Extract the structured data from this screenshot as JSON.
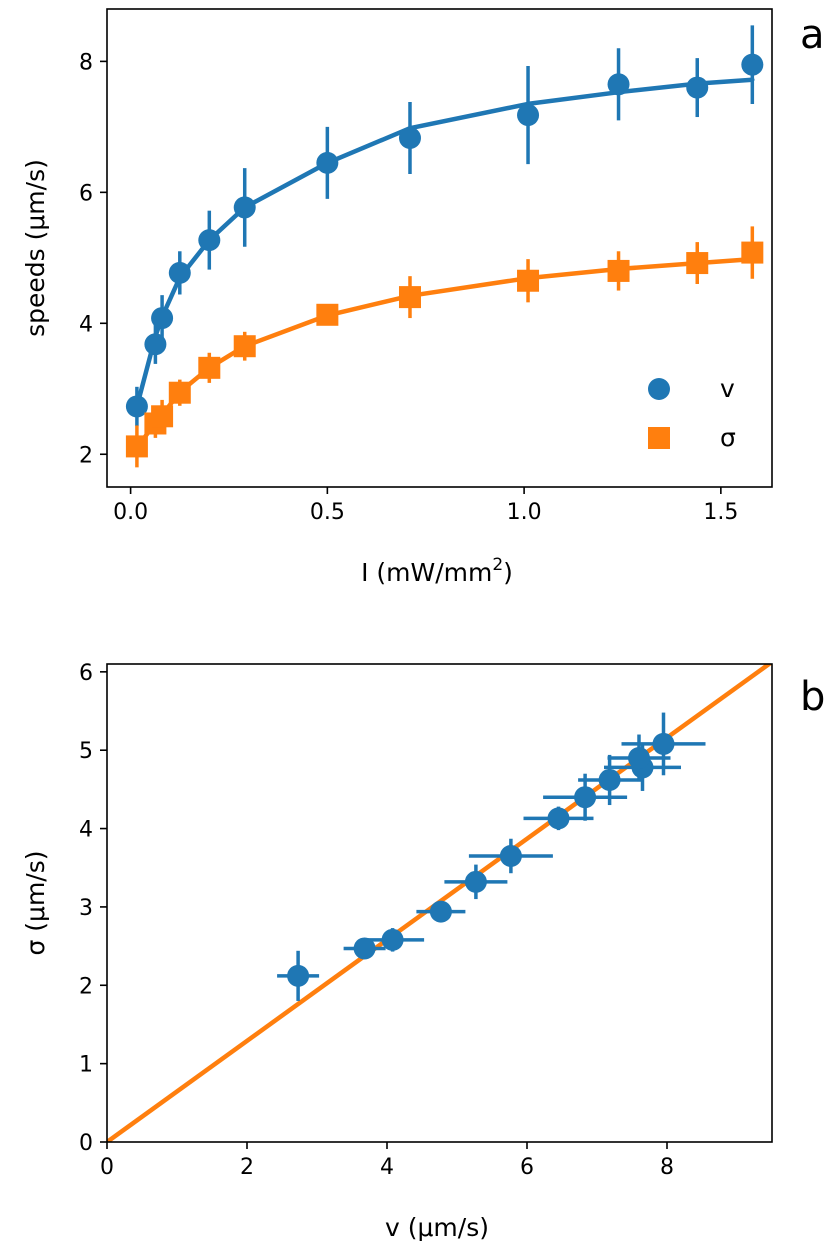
{
  "colors": {
    "v": "#1f77b4",
    "sigma": "#ff7f0e",
    "fit": "#ff7f0e"
  },
  "chart_data": [
    {
      "panel": "a",
      "type": "line",
      "xlabel_main": "I (mW/mm",
      "xlabel_sup": "2",
      "xlabel_end": ")",
      "ylabel": "speeds (μm/s)",
      "xlim": [
        -0.06,
        1.63
      ],
      "ylim": [
        1.5,
        8.8
      ],
      "xticks": [
        0.0,
        0.5,
        1.0,
        1.5
      ],
      "xtick_labels": [
        "0.0",
        "0.5",
        "1.0",
        "1.5"
      ],
      "yticks": [
        2,
        4,
        6,
        8
      ],
      "ytick_labels": [
        "2",
        "4",
        "6",
        "8"
      ],
      "legend_position": "lower-right",
      "series": [
        {
          "name": "v",
          "marker": "circle",
          "x": [
            0.016,
            0.063,
            0.08,
            0.125,
            0.2,
            0.29,
            0.5,
            0.71,
            1.01,
            1.24,
            1.44,
            1.58
          ],
          "values": [
            2.73,
            3.68,
            4.08,
            4.77,
            5.27,
            5.77,
            6.45,
            6.83,
            7.18,
            7.65,
            7.6,
            7.95
          ],
          "errors": [
            0.3,
            0.3,
            0.35,
            0.33,
            0.45,
            0.6,
            0.55,
            0.55,
            0.75,
            0.55,
            0.45,
            0.6
          ],
          "fit": [
            [
              0.016,
              2.73
            ],
            [
              0.063,
              3.8
            ],
            [
              0.08,
              4.1
            ],
            [
              0.125,
              4.7
            ],
            [
              0.2,
              5.27
            ],
            [
              0.29,
              5.77
            ],
            [
              0.5,
              6.45
            ],
            [
              0.71,
              6.98
            ],
            [
              1.01,
              7.35
            ],
            [
              1.24,
              7.53
            ],
            [
              1.44,
              7.66
            ],
            [
              1.58,
              7.72
            ]
          ]
        },
        {
          "name": "σ",
          "marker": "square",
          "x": [
            0.016,
            0.063,
            0.08,
            0.125,
            0.2,
            0.29,
            0.5,
            0.71,
            1.01,
            1.24,
            1.44,
            1.58
          ],
          "values": [
            2.12,
            2.47,
            2.58,
            2.94,
            3.32,
            3.65,
            4.13,
            4.4,
            4.65,
            4.8,
            4.92,
            5.08
          ],
          "errors": [
            0.32,
            0.22,
            0.25,
            0.2,
            0.23,
            0.22,
            0.13,
            0.32,
            0.33,
            0.3,
            0.32,
            0.4
          ],
          "fit": [
            [
              0.016,
              2.1
            ],
            [
              0.063,
              2.48
            ],
            [
              0.08,
              2.6
            ],
            [
              0.125,
              2.95
            ],
            [
              0.2,
              3.32
            ],
            [
              0.29,
              3.65
            ],
            [
              0.5,
              4.12
            ],
            [
              0.71,
              4.42
            ],
            [
              1.01,
              4.69
            ],
            [
              1.24,
              4.83
            ],
            [
              1.44,
              4.92
            ],
            [
              1.58,
              4.98
            ]
          ]
        }
      ]
    },
    {
      "panel": "b",
      "type": "scatter",
      "xlabel": "v (μm/s)",
      "ylabel": "σ (μm/s)",
      "xlim": [
        0,
        9.5
      ],
      "ylim": [
        0,
        6.1
      ],
      "xticks": [
        0,
        2,
        4,
        6,
        8
      ],
      "xtick_labels": [
        "0",
        "2",
        "4",
        "6",
        "8"
      ],
      "yticks": [
        0,
        1,
        2,
        3,
        4,
        5,
        6
      ],
      "ytick_labels": [
        "0",
        "1",
        "2",
        "3",
        "4",
        "5",
        "6"
      ],
      "x": [
        2.73,
        3.68,
        4.08,
        4.77,
        5.27,
        5.77,
        6.45,
        6.83,
        7.18,
        7.65,
        7.6,
        7.95
      ],
      "values": [
        2.12,
        2.47,
        2.58,
        2.94,
        3.32,
        3.65,
        4.13,
        4.4,
        4.62,
        4.78,
        4.9,
        5.08
      ],
      "xerr": [
        0.3,
        0.3,
        0.45,
        0.35,
        0.45,
        0.6,
        0.5,
        0.6,
        0.45,
        0.55,
        0.45,
        0.6
      ],
      "yerr": [
        0.32,
        0.1,
        0.15,
        0.12,
        0.22,
        0.22,
        0.15,
        0.3,
        0.32,
        0.3,
        0.3,
        0.4
      ],
      "line": {
        "slope": 0.645,
        "intercept": 0.0
      }
    }
  ]
}
